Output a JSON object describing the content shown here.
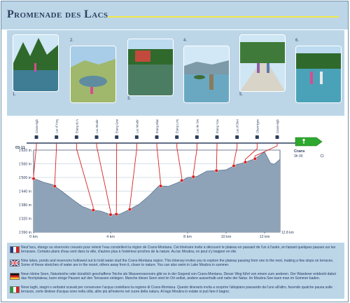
{
  "title": "Promenade des Lacs",
  "photos": [
    {
      "label": "1."
    },
    {
      "label": "2."
    },
    {
      "label": "3."
    },
    {
      "label": "4."
    },
    {
      "label": "5."
    },
    {
      "label": "6."
    }
  ],
  "profile": {
    "start_code": "03-11",
    "destination": "Crans",
    "duration": "3h 00",
    "km_axis_label": "12.8 km",
    "colors": {
      "accent": "#d92020",
      "fill": "#8fa3b8",
      "sign": "#2fa82f",
      "panel": "#bcd6e8"
    },
    "y_ticks": [
      "1'620 m",
      "1'560 m",
      "1'500 m",
      "1'440 m",
      "1'380 m",
      "1'320 m",
      "1'260 m"
    ],
    "x_ticks": [
      "0 km",
      "4 km",
      "8 km",
      "10 km",
      "12 km"
    ],
    "waypoints": [
      {
        "name": "Crans-église"
      },
      {
        "name": "Lac d'Ycogne"
      },
      {
        "name": "Étang du Mont-Rosaire"
      },
      {
        "name": "Lac Moubra"
      },
      {
        "name": "Étang Grenon"
      },
      {
        "name": "Lac Moubra"
      },
      {
        "name": "Étang Blanc"
      },
      {
        "name": "Étang Long"
      },
      {
        "name": "Lac de Grenon"
      },
      {
        "name": "Étang Ycoor"
      },
      {
        "name": "Lac d'Chermignon"
      },
      {
        "name": "Chermignon"
      },
      {
        "name": "Crans-église"
      }
    ]
  },
  "legend": [
    {
      "lang": "fr",
      "text": "Neuf lacs, étangs ou réservoirs creusés pour retenir l'eau constellent la région de Crans-Montana. Cet itinéraire invite à découvrir le plateau en passant de l'un à l'autre, en faisant quelques pauses sur les terrasses. Certains plans d'eau sont dans la ville, d'autres plus à l'extérieur proches de la nature. Au lac Moubra, on peut s'y baigner en été."
    },
    {
      "lang": "en",
      "text": "Nine lakes, ponds and reservoirs hollowed out to hold water stud the Crans-Montana region. This itinerary invites you to explore the plateau passing from one to the next, making a few stops on terraces. Some of these stretches of water are in the resort, others away from it, closer to nature. You can also swim in Lake Moubra in summer."
    },
    {
      "lang": "de",
      "text": "Neun kleine Seen, Naturteiche oder künstlich geschaffene Teiche als Wasserreservoirs gibt es in der Gegend von Crans-Montana. Dieser Weg führt von einem zum anderen. Der Wanderer entdeckt dabei das Hochplateau, kann einige Pausen auf den Terrassen einlegen. Manche dieser Seen sind im Ort selbst, andere ausserhalb und nahe der Natur. Im Moubra-See kann man im Sommer baden."
    },
    {
      "lang": "it",
      "text": "Nove laghi, stagni o serbatoi scavati per conservare l'acqua costellano la regione di Crans-Montana. Questo itinerario invita a scoprire l'altopiano passando da l'uno all'altro, facendo qualche pausa sulle terrazze, certe distese d'acqua sono nella città, altre più all'esterno nel cuore della natura. Al lago Moubra in estate si può fare il bagno."
    }
  ],
  "chart_data": {
    "type": "area",
    "title": "",
    "xlabel": "",
    "ylabel": "",
    "xlim": [
      0,
      12.8
    ],
    "ylim": [
      1260,
      1620
    ],
    "x": [
      0,
      0.25,
      0.5,
      1,
      1.5,
      2,
      2.5,
      3,
      3.5,
      4,
      4.5,
      5,
      5.5,
      6,
      6.5,
      7,
      7.5,
      8,
      8.5,
      9,
      9.5,
      10,
      10.5,
      11,
      11.5,
      12,
      12.3,
      12.5,
      12.8
    ],
    "y": [
      1495,
      1488,
      1479,
      1468,
      1437,
      1405,
      1374,
      1358,
      1352,
      1337,
      1340,
      1360,
      1384,
      1420,
      1463,
      1461,
      1478,
      1500,
      1505,
      1528,
      1530,
      1534,
      1555,
      1567,
      1582,
      1612,
      1563,
      1558,
      1580
    ]
  }
}
